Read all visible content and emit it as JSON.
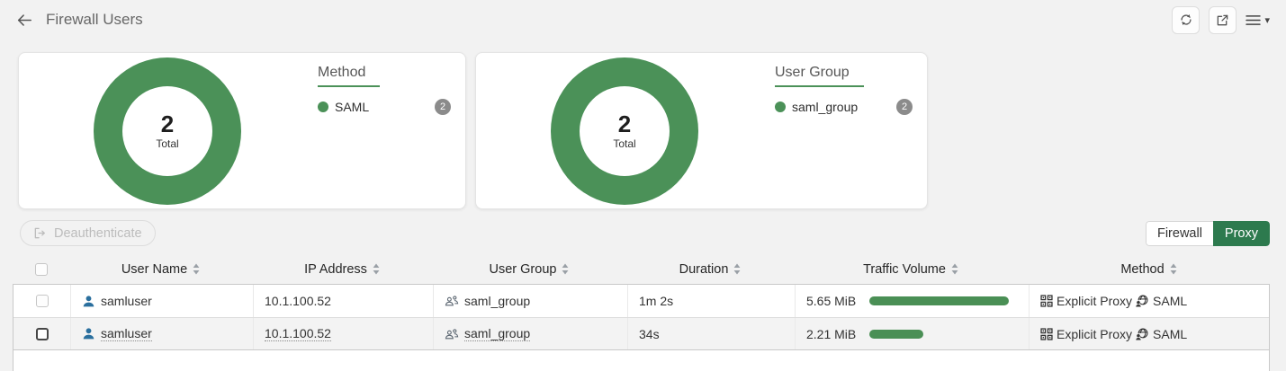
{
  "header": {
    "title": "Firewall Users"
  },
  "colors": {
    "donut_green": "#4b9158",
    "bar_green": "#4a8f55",
    "active_toggle_green": "#2d7a4e",
    "badge_gray": "#8b8b8b",
    "user_icon_blue": "#2a6f9e"
  },
  "icons": {
    "back": "arrow-left",
    "refresh": "refresh-circular-arrows",
    "open_window": "external-link",
    "menu": "hamburger-with-caret",
    "deauthenticate": "logout-bracket-arrow",
    "sort": "sort-up-down-triangles",
    "user": "person-silhouette",
    "user_group": "people-group",
    "explicit_proxy": "grid-squares",
    "saml": "globe-with-user",
    "checkbox": "checkbox"
  },
  "summary_cards": [
    {
      "total": "2",
      "total_label": "Total",
      "legend_title": "Method",
      "legend_items": [
        {
          "label": "SAML",
          "count": "2"
        }
      ]
    },
    {
      "total": "2",
      "total_label": "Total",
      "legend_title": "User Group",
      "legend_items": [
        {
          "label": "saml_group",
          "count": "2"
        }
      ]
    }
  ],
  "chart_data": [
    {
      "type": "pie",
      "title": "Method",
      "labels": [
        "SAML"
      ],
      "values": [
        2
      ],
      "total": 2,
      "colors": [
        "#4b9158"
      ],
      "legend_position": "right",
      "donut": true
    },
    {
      "type": "pie",
      "title": "User Group",
      "labels": [
        "saml_group"
      ],
      "values": [
        2
      ],
      "total": 2,
      "colors": [
        "#4b9158"
      ],
      "legend_position": "right",
      "donut": true
    }
  ],
  "toolbar": {
    "deauthenticate_label": "Deauthenticate",
    "view_toggle": {
      "firewall_label": "Firewall",
      "proxy_label": "Proxy",
      "active": "Proxy"
    }
  },
  "table": {
    "columns": {
      "user_name": "User Name",
      "ip_address": "IP Address",
      "user_group": "User Group",
      "duration": "Duration",
      "traffic_volume": "Traffic Volume",
      "method": "Method"
    },
    "rows": [
      {
        "user_name": "samluser",
        "ip_address": "10.1.100.52",
        "user_group": "saml_group",
        "duration": "1m 2s",
        "traffic_volume": "5.65 MiB",
        "traffic_bar_percent": "100",
        "method_proxy": "Explicit Proxy",
        "method_auth": "SAML"
      },
      {
        "user_name": "samluser",
        "ip_address": "10.1.100.52",
        "user_group": "saml_group",
        "duration": "34s",
        "traffic_volume": "2.21 MiB",
        "traffic_bar_percent": "39",
        "method_proxy": "Explicit Proxy",
        "method_auth": "SAML"
      }
    ]
  }
}
